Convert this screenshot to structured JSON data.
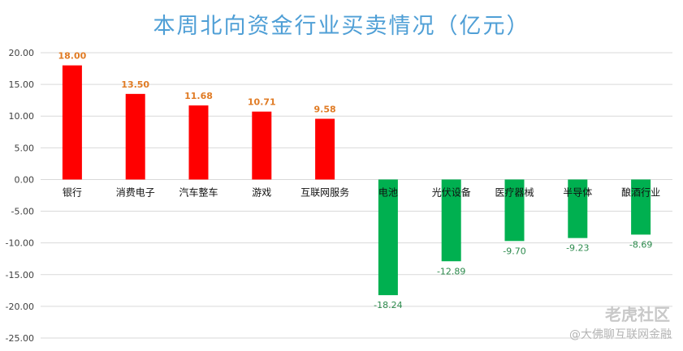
{
  "chart_data": {
    "type": "bar",
    "title": "本周北向资金行业买卖情况（亿元）",
    "categories": [
      "银行",
      "消费电子",
      "汽车整车",
      "游戏",
      "互联网服务",
      "电池",
      "光伏设备",
      "医疗器械",
      "半导体",
      "酿酒行业"
    ],
    "values": [
      18.0,
      13.5,
      11.68,
      10.71,
      9.58,
      -18.24,
      -12.89,
      -9.7,
      -9.23,
      -8.69
    ],
    "data_labels": [
      "18.00",
      "13.50",
      "11.68",
      "10.71",
      "9.58",
      "-18.24",
      "-12.89",
      "-9.70",
      "-9.23",
      "-8.69"
    ],
    "ylim": [
      -25,
      20
    ],
    "yticks": [
      20,
      15,
      10,
      5,
      0,
      -5,
      -10,
      -15,
      -20,
      -25
    ],
    "ytick_labels": [
      "20.00",
      "15.00",
      "10.00",
      "5.00",
      "0.00",
      "-5.00",
      "-10.00",
      "-15.00",
      "-20.00",
      "-25.00"
    ],
    "grid": true,
    "colors": {
      "positive": "#ff0000",
      "negative": "#00b050",
      "grid": "#d9d9d9",
      "title": "#4f9fd6"
    }
  },
  "watermark": {
    "line1": "老虎社区",
    "line2": "@大佛聊互联网金融"
  }
}
